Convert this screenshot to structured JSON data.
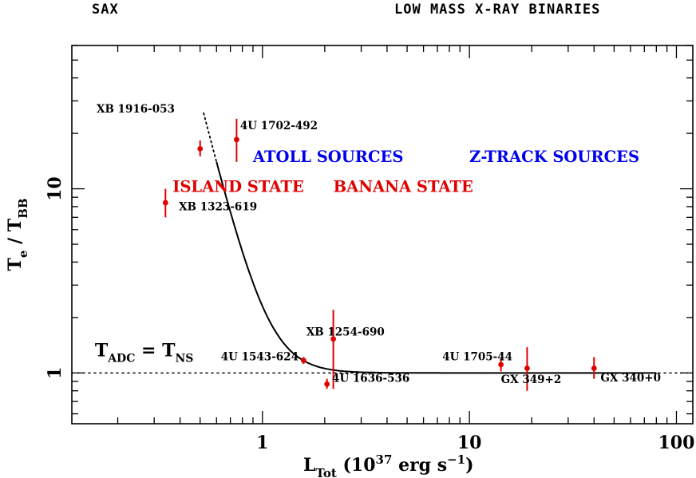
{
  "header": {
    "left": "SAX",
    "right": "LOW MASS X-RAY BINARIES"
  },
  "chart_data": {
    "type": "scatter",
    "xscale": "log",
    "yscale": "log",
    "xlim": [
      0.12,
      120
    ],
    "ylim": [
      0.53,
      60
    ],
    "xticks": [
      {
        "v": 1,
        "label": "1"
      },
      {
        "v": 10,
        "label": "10"
      },
      {
        "v": 100,
        "label": "100"
      }
    ],
    "yticks": [
      {
        "v": 1,
        "label": "1"
      },
      {
        "v": 10,
        "label": "10"
      }
    ],
    "xlabel": {
      "main": "L",
      "sub": "Tot",
      "pre": " (10",
      "sup": "37",
      "mid": " erg s",
      "sup2": "−1",
      "post": ")"
    },
    "ylabel": {
      "t1": "T",
      "s1": "e",
      "mid": " / T",
      "s2": "BB"
    },
    "colors": {
      "points": "#e00000",
      "region_blue": "#0000ee",
      "region_red": "#e00000",
      "curve": "#000000"
    },
    "points": [
      {
        "name": "XB 1916-053",
        "x": 0.5,
        "y": 16.5,
        "ylo": 15.0,
        "yhi": 18.3
      },
      {
        "name": "4U 1702-492",
        "x": 0.75,
        "y": 18.5,
        "ylo": 14.0,
        "yhi": 24.0
      },
      {
        "name": "XB 1323-619",
        "x": 0.34,
        "y": 8.4,
        "ylo": 7.0,
        "yhi": 10.0
      },
      {
        "name": "4U 1543-624",
        "x": 1.58,
        "y": 1.17,
        "ylo": 1.12,
        "yhi": 1.22
      },
      {
        "name": "4U 1636-536",
        "x": 2.05,
        "y": 0.87,
        "ylo": 0.82,
        "yhi": 0.93
      },
      {
        "name": "XB 1254-690",
        "x": 2.2,
        "y": 1.53,
        "ylo": 0.82,
        "yhi": 2.2
      },
      {
        "name": "4U 1705-44",
        "x": 14.2,
        "y": 1.11,
        "ylo": 1.02,
        "yhi": 1.2
      },
      {
        "name": "GX 349+2",
        "x": 19.0,
        "y": 1.06,
        "ylo": 0.8,
        "yhi": 1.38
      },
      {
        "name": "GX 340+0",
        "x": 40.0,
        "y": 1.06,
        "ylo": 0.93,
        "yhi": 1.22
      }
    ],
    "point_labels": [
      {
        "text": "XB 1916-053",
        "x": 0.158,
        "y": 26.0
      },
      {
        "text": "4U 1702-492",
        "x": 0.78,
        "y": 21.0
      },
      {
        "text": "XB 1323-619",
        "x": 0.395,
        "y": 7.65
      },
      {
        "text": "4U 1543-624",
        "x": 0.63,
        "y": 1.17
      },
      {
        "text": "4U 1636-536",
        "x": 2.17,
        "y": 0.895
      },
      {
        "text": "XB 1254-690",
        "x": 1.63,
        "y": 1.6
      },
      {
        "text": "4U 1705-44",
        "x": 7.4,
        "y": 1.17
      },
      {
        "text": "GX 349+2",
        "x": 14.2,
        "y": 0.88
      },
      {
        "text": "GX 340+0",
        "x": 43.0,
        "y": 0.9
      }
    ],
    "region_labels": [
      {
        "text": "ATOLL SOURCES",
        "color": "blue",
        "x": 0.9,
        "y": 14.0
      },
      {
        "text": "Z-TRACK SOURCES",
        "color": "blue",
        "x": 10.0,
        "y": 14.0
      },
      {
        "text": "ISLAND STATE",
        "color": "red",
        "x": 0.368,
        "y": 9.6
      },
      {
        "text": "BANANA STATE",
        "color": "red",
        "x": 2.2,
        "y": 9.6
      }
    ],
    "reference_line": {
      "y": 1.0,
      "style": "dotted",
      "label": {
        "t": "T",
        "s1": "ADC",
        "eq": " = T",
        "s2": "NS"
      },
      "label_x": 0.155,
      "label_y": 1.23
    },
    "model_curve": {
      "form": "1 + A * (x / x0)^(-n)",
      "A": 13,
      "x0": 0.6,
      "n": 4.5,
      "solid_range": [
        0.6,
        80
      ],
      "dotted_range": [
        0.5,
        0.6
      ]
    }
  }
}
